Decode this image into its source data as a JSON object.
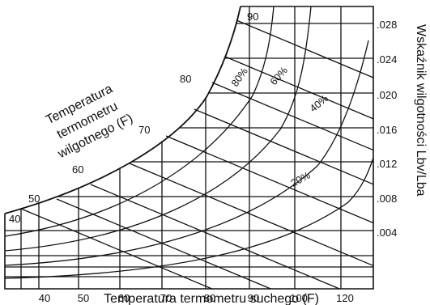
{
  "chart_data": {
    "type": "psychrometric",
    "xlabel": "Temperatura termometru suchego (F)",
    "ylabel": "Wskaźnik wilgotności Lbv/Lba",
    "wet_bulb_label": [
      "Temperatura",
      "termometru",
      "wilgotnego (F)"
    ],
    "x_ticks": [
      "40",
      "50",
      "60",
      "70",
      "80",
      "90",
      "100",
      "120"
    ],
    "y_ticks": [
      ".004",
      ".008",
      ".012",
      ".016",
      ".020",
      ".024",
      ".028"
    ],
    "wet_bulb_ticks": [
      "40",
      "50",
      "60",
      "70",
      "80",
      "90"
    ],
    "rh_curves": [
      "80%",
      "60%",
      "40%",
      "20%"
    ]
  }
}
